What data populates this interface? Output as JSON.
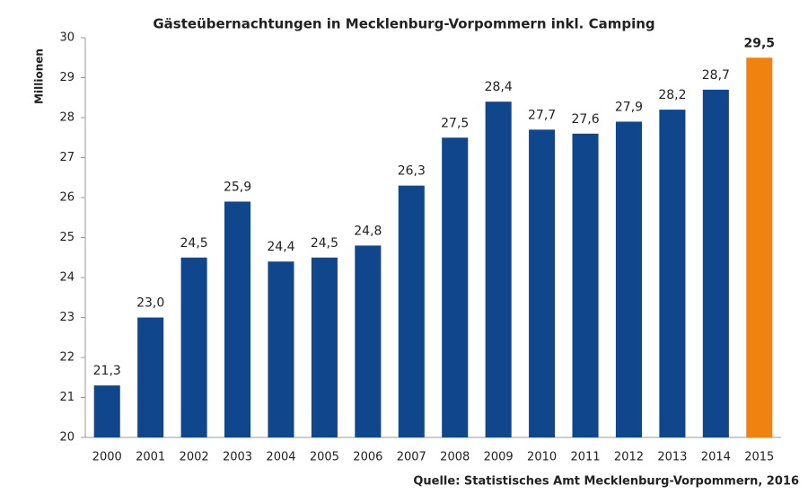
{
  "chart_data": {
    "type": "bar",
    "title": "Gästeübernachtungen  in Mecklenburg-Vorpommern inkl. Camping",
    "y_label": "Millionen",
    "source": "Quelle: Statistisches Amt Mecklenburg-Vorpommern, 2016",
    "categories": [
      "2000",
      "2001",
      "2002",
      "2003",
      "2004",
      "2005",
      "2006",
      "2007",
      "2008",
      "2009",
      "2010",
      "2011",
      "2012",
      "2013",
      "2014",
      "2015"
    ],
    "values": [
      21.3,
      23.0,
      24.5,
      25.9,
      24.4,
      24.5,
      24.8,
      26.3,
      27.5,
      28.4,
      27.7,
      27.6,
      27.9,
      28.2,
      28.7,
      29.5
    ],
    "value_labels": [
      "21,3",
      "23,0",
      "24,5",
      "25,9",
      "24,4",
      "24,5",
      "24,8",
      "26,3",
      "27,5",
      "28,4",
      "27,7",
      "27,6",
      "27,9",
      "28,2",
      "28,7",
      "29,5"
    ],
    "colors": [
      "#0f468c",
      "#0f468c",
      "#0f468c",
      "#0f468c",
      "#0f468c",
      "#0f468c",
      "#0f468c",
      "#0f468c",
      "#0f468c",
      "#0f468c",
      "#0f468c",
      "#0f468c",
      "#0f468c",
      "#0f468c",
      "#0f468c",
      "#f0820f"
    ],
    "ylim": [
      20,
      30
    ],
    "yticks": [
      20,
      21,
      22,
      23,
      24,
      25,
      26,
      27,
      28,
      29,
      30
    ],
    "grid": false
  }
}
